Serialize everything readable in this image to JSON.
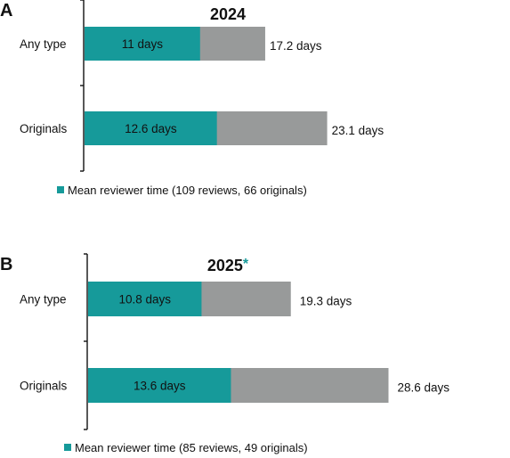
{
  "colors": {
    "teal": "#169a9a",
    "gray": "#989a9a",
    "axis": "#111111"
  },
  "chart_data": [
    {
      "type": "bar",
      "orientation": "horizontal",
      "stacked": true,
      "panel": "A",
      "title": "2024",
      "title_marker": "",
      "categories": [
        "Any type",
        "Originals"
      ],
      "series": [
        {
          "name": "Mean reviewer time (109 reviews, 66 originals)",
          "values": [
            11,
            12.6
          ],
          "labels": [
            "11 days",
            "12.6 days"
          ]
        }
      ],
      "totals": [
        17.2,
        23.1
      ],
      "total_labels": [
        "17.2 days",
        "23.1 days"
      ],
      "legend": "Mean reviewer time (109 reviews, 66 originals)",
      "legend_position": "bottom-left",
      "xlim": [
        0,
        29
      ],
      "grid": false
    },
    {
      "type": "bar",
      "orientation": "horizontal",
      "stacked": true,
      "panel": "B",
      "title": "2025",
      "title_marker": "*",
      "categories": [
        "Any type",
        "Originals"
      ],
      "series": [
        {
          "name": "Mean reviewer time (85 reviews, 49 originals)",
          "values": [
            10.8,
            13.6
          ],
          "labels": [
            "10.8 days",
            "13.6 days"
          ]
        }
      ],
      "totals": [
        19.3,
        28.6
      ],
      "total_labels": [
        "19.3 days",
        "28.6 days"
      ],
      "legend": "Mean reviewer time (85 reviews, 49 originals)",
      "legend_position": "bottom-left",
      "xlim": [
        0,
        29
      ],
      "grid": false
    }
  ]
}
